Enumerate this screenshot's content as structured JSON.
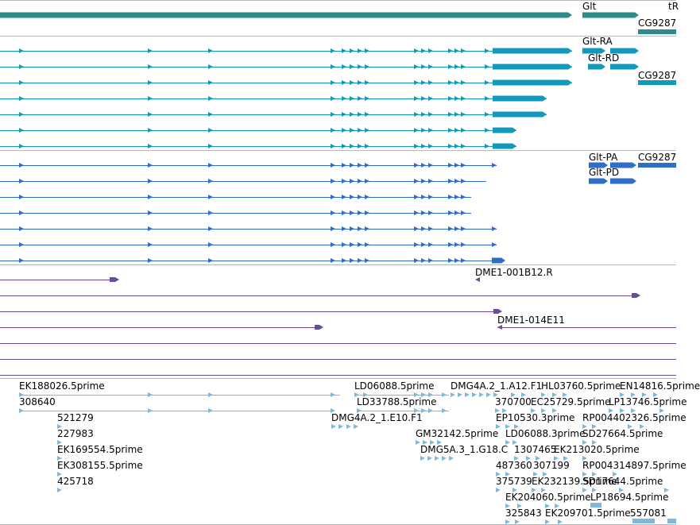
{
  "colors": {
    "gene": "#2e8b8b",
    "mrna": "#1199bb",
    "cds": "#2f6ec8",
    "clone": "#6a4c9c",
    "est": "#7fb8d8",
    "divider": "#b8b8b8"
  },
  "gene_track": {
    "labels": [
      "Glt",
      "tR",
      "CG9287"
    ]
  },
  "mrna_track": {
    "labels": [
      "Glt-RA",
      "Glt-RD",
      "CG9287"
    ]
  },
  "cds_track": {
    "labels": [
      "Glt-PA",
      "CG9287",
      "Glt-PD"
    ]
  },
  "clone_track": {
    "labels": [
      "DME1-001B12.R",
      "DME1-014E11"
    ]
  },
  "est_track": {
    "labels": [
      "EK188026.5prime",
      "308640",
      "521279",
      "227983",
      "EK169554.5prime",
      "EK308155.5prime",
      "425718",
      "LD06088.5prime",
      "LD33788.5prime",
      "DMG4A.2_1.E10.F1",
      "GM32142.5prime",
      "DMG5A.3_1.G18.C",
      "DMG4A.2_1.A12.F1",
      "370700",
      "EP10530.3prime",
      "LD06088.3prime",
      "1307465",
      "487360",
      "307199",
      "375739",
      "EK232139.5prime",
      "EK204060.5prime",
      "325843",
      "EK209701.5prime",
      "HL03760.5prime",
      "EC25729.5prime",
      "EN14816.5prime",
      "LP13746.5prime",
      "RP004402326.5prime",
      "SD27664.5prime",
      "EK213020.5prime",
      "RP004314897.5prime",
      "SD17644.5prime",
      "LP18694.5prime",
      "557081"
    ]
  }
}
